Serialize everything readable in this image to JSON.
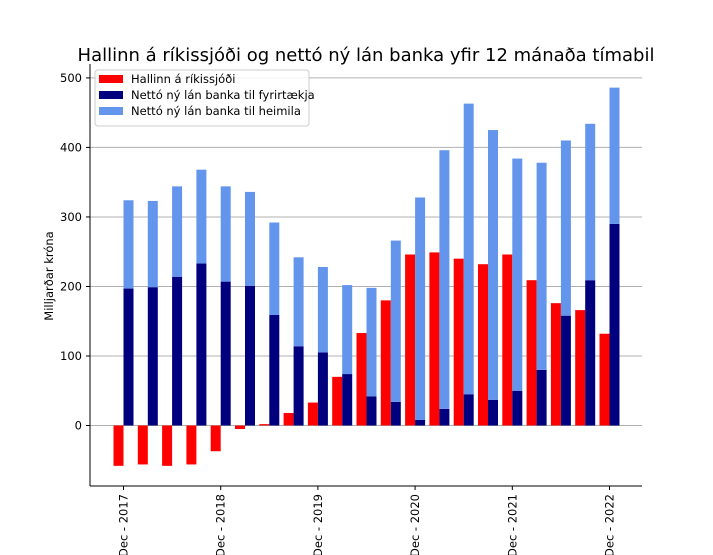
{
  "chart_data": {
    "type": "bar",
    "title": "Hallinn á ríkissjóði og nettó ný lán banka yfir 12 mánaða tímabil",
    "xlabel": "",
    "ylabel": "Milljarðar króna",
    "ylim": [
      -87,
      520
    ],
    "yticks": [
      0,
      100,
      200,
      300,
      400,
      500
    ],
    "grid": "horizontal",
    "legend_position": "top-left",
    "x_tick_labels": [
      "Dec - 2017",
      "Dec - 2018",
      "Dec - 2019",
      "Dec - 2020",
      "Dec - 2021",
      "Dec - 2022"
    ],
    "x_tick_positions": [
      0,
      4,
      8,
      12,
      16,
      20
    ],
    "num_periods": 21,
    "series": [
      {
        "name": "Hallinn á ríkissjóði",
        "color": "#ff0000",
        "stacked": false,
        "values": [
          -58,
          -56,
          -58,
          -56,
          -37,
          -5,
          2,
          18,
          33,
          70,
          133,
          180,
          246,
          249,
          240,
          232,
          246,
          209,
          176,
          166,
          132
        ]
      },
      {
        "name": "Nettó ný lán banka til fyrirtækja",
        "color": "#00007f",
        "stacked": true,
        "values": [
          197,
          199,
          214,
          233,
          207,
          201,
          159,
          114,
          105,
          74,
          42,
          34,
          8,
          24,
          45,
          37,
          50,
          80,
          158,
          209,
          290
        ]
      },
      {
        "name": "Nettó ný lán banka til heimila",
        "color": "#6495ed",
        "stacked": true,
        "values": [
          127,
          124,
          130,
          135,
          137,
          135,
          133,
          128,
          123,
          128,
          156,
          232,
          320,
          372,
          418,
          388,
          334,
          298,
          252,
          225,
          196
        ]
      }
    ]
  }
}
